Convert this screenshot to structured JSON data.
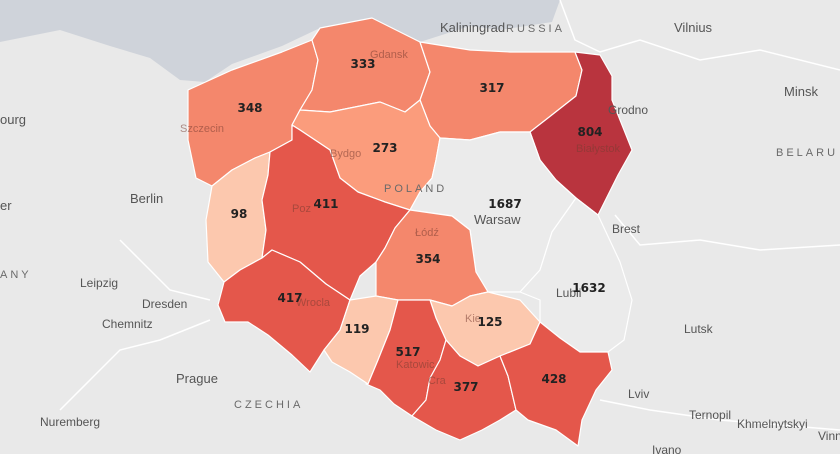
{
  "colors": {
    "water": "#cfd3da",
    "land": "#e9e9e9",
    "scale": [
      "#fcc8ae",
      "#fb9c7c",
      "#f4876c",
      "#e4574b",
      "#b9343e"
    ]
  },
  "places": {
    "kaliningrad": "Kaliningrad",
    "russia": "RUSSIA",
    "vilnius": "Vilnius",
    "minsk": "Minsk",
    "belarus": "BELARU",
    "brest": "Brest",
    "lutsk": "Lutsk",
    "lviv": "Lviv",
    "ternopil": "Ternopil",
    "khmelnytskyi": "Khmelnytskyi",
    "vinn": "Vinn",
    "ivano": "Ivano",
    "berlin": "Berlin",
    "leipzig": "Leipzig",
    "dresden": "Dresden",
    "chemnitz": "Chemnitz",
    "prague": "Prague",
    "czechia": "CZECHIA",
    "nuremberg": "Nuremberg",
    "germany": "ANY",
    "hamburg": "ourg",
    "er": "er",
    "poland": "POLAND",
    "warsaw": "Warsaw",
    "lublin": "Lubli",
    "grodno": "Grodno",
    "gdansk": "Gdansk",
    "szczecin": "Szczecin",
    "bydgoszcz": "Bydgo",
    "poznan": "Poz",
    "wroclaw": "Wrocla",
    "lodz": "Łódź",
    "krakow": "Cra",
    "katowice": "Katowic",
    "kielce": "Kie",
    "bialystok": "Białystok"
  },
  "regions": {
    "zachodniopomorskie": {
      "value": "348",
      "level": 2
    },
    "pomorskie": {
      "value": "333",
      "level": 2
    },
    "warminsko_mazurskie": {
      "value": "317",
      "level": 2
    },
    "podlaskie": {
      "value": "804",
      "level": 4
    },
    "kujawsko_pomorskie": {
      "value": "273",
      "level": 1
    },
    "mazowieckie": {
      "value": "1687"
    },
    "lubuskie": {
      "value": "98",
      "level": 0
    },
    "wielkopolskie": {
      "value": "411",
      "level": 3
    },
    "lodzkie": {
      "value": "354",
      "level": 2
    },
    "lubelskie": {
      "value": "1632"
    },
    "dolnoslaskie": {
      "value": "417",
      "level": 3
    },
    "opolskie": {
      "value": "119",
      "level": 0
    },
    "swietokrzyskie": {
      "value": "125",
      "level": 0
    },
    "slaskie": {
      "value": "517",
      "level": 3
    },
    "malopolskie": {
      "value": "377",
      "level": 3
    },
    "podkarpackie": {
      "value": "428",
      "level": 3
    }
  }
}
